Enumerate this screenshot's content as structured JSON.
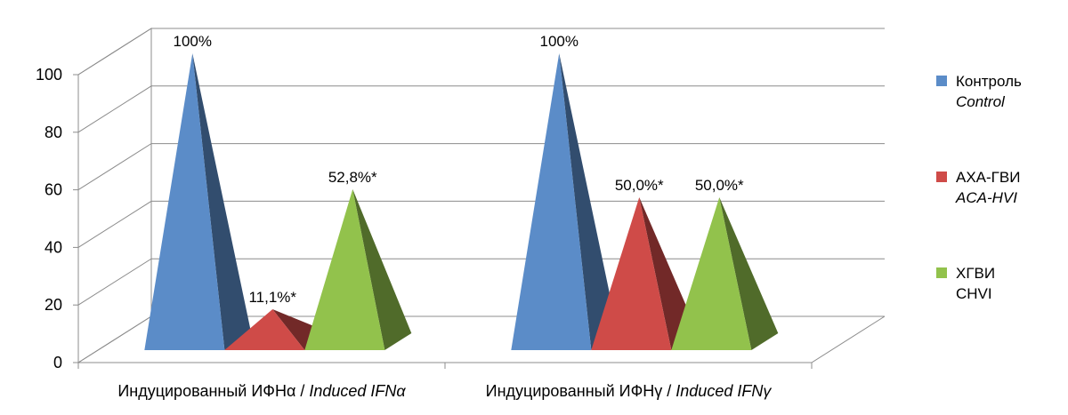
{
  "chart_data": {
    "type": "bar",
    "categories_ru": [
      "Индуцированный ИФНα",
      "Индуцированный ИФНγ"
    ],
    "categories_en": [
      "Induced IFNα",
      "Induced IFNγ"
    ],
    "categories_sep": " / ",
    "series": [
      {
        "name_ru": "Контроль",
        "name_en": "Control",
        "en_italic": true,
        "color": "#5B8CC8",
        "values": [
          100,
          100
        ],
        "labels": [
          "100%",
          "100%"
        ]
      },
      {
        "name_ru": "АХА-ГВИ",
        "name_en": "ACA-HVI",
        "en_italic": true,
        "color": "#CF4B48",
        "values": [
          11.1,
          50.0
        ],
        "labels": [
          "11,1%*",
          "50,0%*"
        ]
      },
      {
        "name_ru": "ХГВИ",
        "name_en": "CHVI",
        "en_italic": false,
        "color": "#92C24C",
        "values": [
          52.8,
          50.0
        ],
        "labels": [
          "52,8%*",
          "50,0%*"
        ]
      }
    ],
    "yticks": [
      0,
      20,
      40,
      60,
      80,
      100
    ],
    "ylim": [
      0,
      100
    ],
    "legend_position": "right",
    "grid": true,
    "bar_shape": "pyramid-3d"
  }
}
